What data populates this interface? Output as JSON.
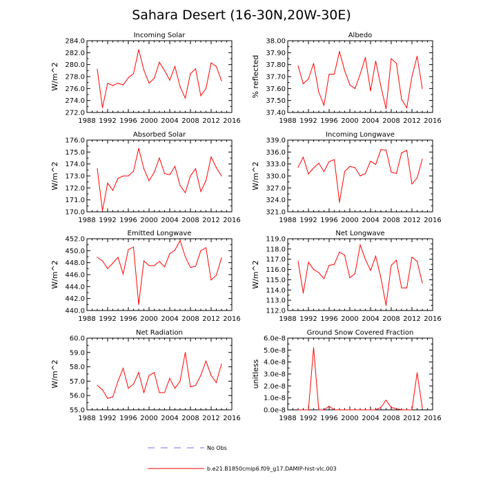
{
  "figure": {
    "title": "Sahara Desert (16-30N,20W-30E)",
    "legend": [
      {
        "label": "No Obs",
        "color": "#7b68ee",
        "style": "dashed"
      },
      {
        "label": "b.e21.B1850cmip6.f09_g17.DAMIP-hist-vlc.003",
        "color": "#ff0000",
        "style": "solid"
      }
    ]
  },
  "chart_data": [
    {
      "type": "line",
      "title": "Incoming Solar",
      "ylabel": "W/m^2",
      "xlim": [
        1988,
        2016
      ],
      "xticks": [
        1988,
        1992,
        1996,
        2000,
        2004,
        2008,
        2012,
        2016
      ],
      "ylim": [
        272,
        284
      ],
      "yticks": [
        272,
        274,
        276,
        278,
        280,
        282,
        284
      ],
      "ydecimals": 1,
      "series": [
        {
          "name": "b.e21.B1850cmip6.f09_g17.DAMIP-hist-vlc.003",
          "color": "#ff0000",
          "x": [
            1990,
            1991,
            1992,
            1993,
            1994,
            1995,
            1996,
            1997,
            1998,
            1999,
            2000,
            2001,
            2002,
            2003,
            2004,
            2005,
            2006,
            2007,
            2008,
            2009,
            2010,
            2011,
            2012,
            2013,
            2014
          ],
          "values": [
            279.2,
            272.8,
            276.9,
            276.5,
            276.9,
            276.6,
            277.8,
            278.5,
            282.5,
            279.1,
            276.9,
            277.7,
            280.4,
            279.0,
            277.4,
            279.7,
            276.3,
            274.4,
            278.5,
            279.3,
            274.8,
            276.0,
            280.3,
            279.7,
            277.3
          ]
        }
      ]
    },
    {
      "type": "line",
      "title": "Albedo",
      "ylabel": "% reflected",
      "xlim": [
        1988,
        2016
      ],
      "xticks": [
        1988,
        1992,
        1996,
        2000,
        2004,
        2008,
        2012,
        2016
      ],
      "ylim": [
        37.4,
        38.0
      ],
      "yticks": [
        37.4,
        37.5,
        37.6,
        37.7,
        37.8,
        37.9,
        38.0
      ],
      "ydecimals": 2,
      "series": [
        {
          "name": "b.e21.B1850cmip6.f09_g17.DAMIP-hist-vlc.003",
          "color": "#ff0000",
          "x": [
            1990,
            1991,
            1992,
            1993,
            1994,
            1995,
            1996,
            1997,
            1998,
            1999,
            2000,
            2001,
            2002,
            2003,
            2004,
            2005,
            2006,
            2007,
            2008,
            2009,
            2010,
            2011,
            2012,
            2013,
            2014
          ],
          "values": [
            37.79,
            37.64,
            37.68,
            37.81,
            37.57,
            37.46,
            37.72,
            37.72,
            37.91,
            37.75,
            37.63,
            37.6,
            37.72,
            37.86,
            37.58,
            37.83,
            37.62,
            37.43,
            37.85,
            37.81,
            37.51,
            37.44,
            37.7,
            37.87,
            37.6
          ]
        }
      ]
    },
    {
      "type": "line",
      "title": "Absorbed Solar",
      "ylabel": "W/m^2",
      "xlim": [
        1988,
        2016
      ],
      "xticks": [
        1988,
        1992,
        1996,
        2000,
        2004,
        2008,
        2012,
        2016
      ],
      "ylim": [
        170,
        176
      ],
      "yticks": [
        170,
        171,
        172,
        173,
        174,
        175,
        176
      ],
      "ydecimals": 1,
      "series": [
        {
          "name": "b.e21.B1850cmip6.f09_g17.DAMIP-hist-vlc.003",
          "color": "#ff0000",
          "x": [
            1990,
            1991,
            1992,
            1993,
            1994,
            1995,
            1996,
            1997,
            1998,
            1999,
            2000,
            2001,
            2002,
            2003,
            2004,
            2005,
            2006,
            2007,
            2008,
            2009,
            2010,
            2011,
            2012,
            2013,
            2014
          ],
          "values": [
            173.6,
            170.1,
            172.4,
            171.8,
            172.8,
            173.0,
            173.0,
            173.4,
            175.3,
            173.6,
            172.6,
            173.3,
            174.5,
            173.2,
            173.1,
            173.8,
            172.2,
            171.6,
            173.0,
            173.6,
            171.7,
            172.6,
            174.6,
            173.7,
            173.0
          ]
        }
      ]
    },
    {
      "type": "line",
      "title": "Incoming Longwave",
      "ylabel": "W/m^2",
      "xlim": [
        1988,
        2016
      ],
      "xticks": [
        1988,
        1992,
        1996,
        2000,
        2004,
        2008,
        2012,
        2016
      ],
      "ylim": [
        321,
        339
      ],
      "yticks": [
        321,
        324,
        327,
        330,
        333,
        336,
        339
      ],
      "ydecimals": 1,
      "series": [
        {
          "name": "b.e21.B1850cmip6.f09_g17.DAMIP-hist-vlc.003",
          "color": "#ff0000",
          "x": [
            1990,
            1991,
            1992,
            1993,
            1994,
            1995,
            1996,
            1997,
            1998,
            1999,
            2000,
            2001,
            2002,
            2003,
            2004,
            2005,
            2006,
            2007,
            2008,
            2009,
            2010,
            2011,
            2012,
            2013,
            2014
          ],
          "values": [
            332.2,
            334.7,
            330.5,
            332.0,
            333.2,
            331.1,
            333.6,
            334.1,
            323.4,
            331.1,
            332.4,
            332.1,
            330.0,
            330.6,
            333.7,
            332.9,
            336.6,
            336.5,
            331.0,
            330.6,
            335.8,
            336.4,
            328.0,
            329.5,
            334.2
          ]
        }
      ]
    },
    {
      "type": "line",
      "title": "Emitted Longwave",
      "ylabel": "W/m^2",
      "xlim": [
        1988,
        2016
      ],
      "xticks": [
        1988,
        1992,
        1996,
        2000,
        2004,
        2008,
        2012,
        2016
      ],
      "ylim": [
        440,
        452
      ],
      "yticks": [
        440,
        442,
        444,
        446,
        448,
        450,
        452
      ],
      "ydecimals": 1,
      "series": [
        {
          "name": "b.e21.B1850cmip6.f09_g17.DAMIP-hist-vlc.003",
          "color": "#ff0000",
          "x": [
            1990,
            1991,
            1992,
            1993,
            1994,
            1995,
            1996,
            1997,
            1998,
            1999,
            2000,
            2001,
            2002,
            2003,
            2004,
            2005,
            2006,
            2007,
            2008,
            2009,
            2010,
            2011,
            2012,
            2013,
            2014
          ],
          "values": [
            448.9,
            448.3,
            447.0,
            447.9,
            448.9,
            446.1,
            450.2,
            450.6,
            441.0,
            448.3,
            447.5,
            447.5,
            448.2,
            447.3,
            449.5,
            450.1,
            451.7,
            449.0,
            447.2,
            447.4,
            450.0,
            450.5,
            445.1,
            445.9,
            448.8
          ]
        }
      ]
    },
    {
      "type": "line",
      "title": "Net Longwave",
      "ylabel": "W/m^2",
      "xlim": [
        1988,
        2016
      ],
      "xticks": [
        1988,
        1992,
        1996,
        2000,
        2004,
        2008,
        2012,
        2016
      ],
      "ylim": [
        112,
        119
      ],
      "yticks": [
        112,
        113,
        114,
        115,
        116,
        117,
        118,
        119
      ],
      "ydecimals": 1,
      "series": [
        {
          "name": "b.e21.B1850cmip6.f09_g17.DAMIP-hist-vlc.003",
          "color": "#ff0000",
          "x": [
            1990,
            1991,
            1992,
            1993,
            1994,
            1995,
            1996,
            1997,
            1998,
            1999,
            2000,
            2001,
            2002,
            2003,
            2004,
            2005,
            2006,
            2007,
            2008,
            2009,
            2010,
            2011,
            2012,
            2013,
            2014
          ],
          "values": [
            116.8,
            113.7,
            116.7,
            116.0,
            115.7,
            115.1,
            116.4,
            116.5,
            117.7,
            117.4,
            115.2,
            115.6,
            118.4,
            117.0,
            115.9,
            117.3,
            115.2,
            112.5,
            116.4,
            116.9,
            114.2,
            114.2,
            117.2,
            116.8,
            114.7
          ]
        }
      ]
    },
    {
      "type": "line",
      "title": "Net Radiation",
      "ylabel": "W/m^2",
      "xlim": [
        1988,
        2016
      ],
      "xticks": [
        1988,
        1992,
        1996,
        2000,
        2004,
        2008,
        2012,
        2016
      ],
      "ylim": [
        55,
        60
      ],
      "yticks": [
        55,
        56,
        57,
        58,
        59,
        60
      ],
      "ydecimals": 1,
      "series": [
        {
          "name": "b.e21.B1850cmip6.f09_g17.DAMIP-hist-vlc.003",
          "color": "#ff0000",
          "x": [
            1990,
            1991,
            1992,
            1993,
            1994,
            1995,
            1996,
            1997,
            1998,
            1999,
            2000,
            2001,
            2002,
            2003,
            2004,
            2005,
            2006,
            2007,
            2008,
            2009,
            2010,
            2011,
            2012,
            2013,
            2014
          ],
          "values": [
            56.7,
            56.4,
            55.8,
            55.9,
            57.0,
            57.9,
            56.5,
            56.8,
            57.6,
            56.2,
            57.4,
            57.6,
            56.2,
            56.2,
            57.2,
            56.5,
            57.0,
            59.0,
            56.6,
            56.7,
            57.4,
            58.4,
            57.4,
            56.9,
            58.2
          ]
        }
      ]
    },
    {
      "type": "line",
      "title": "Ground Snow Covered Fraction",
      "ylabel": "unitless",
      "xlim": [
        1988,
        2016
      ],
      "xticks": [
        1988,
        1992,
        1996,
        2000,
        2004,
        2008,
        2012,
        2016
      ],
      "ylim": [
        0,
        6e-08
      ],
      "yticks": [
        0,
        1e-08,
        2e-08,
        3e-08,
        4e-08,
        5e-08,
        6e-08
      ],
      "ytick_labels": [
        "0.0e-8",
        "1.0e-8",
        "2.0e-8",
        "3.0e-8",
        "4.0e-8",
        "5.0e-8",
        "6.0e-8"
      ],
      "series": [
        {
          "name": "b.e21.B1850cmip6.f09_g17.DAMIP-hist-vlc.003",
          "color": "#ff0000",
          "x": [
            1990,
            1991,
            1992,
            1993,
            1994,
            1995,
            1996,
            1997,
            1998,
            1999,
            2000,
            2001,
            2002,
            2003,
            2004,
            2005,
            2006,
            2007,
            2008,
            2009,
            2010,
            2011,
            2012,
            2013,
            2014
          ],
          "values": [
            0,
            0,
            0,
            5.2e-08,
            0,
            0,
            3e-09,
            0,
            0,
            0,
            0,
            0,
            0,
            0,
            0,
            0,
            2e-09,
            8e-09,
            2e-09,
            1e-09,
            0,
            0,
            0,
            3.1e-08,
            2e-09
          ]
        }
      ]
    }
  ]
}
